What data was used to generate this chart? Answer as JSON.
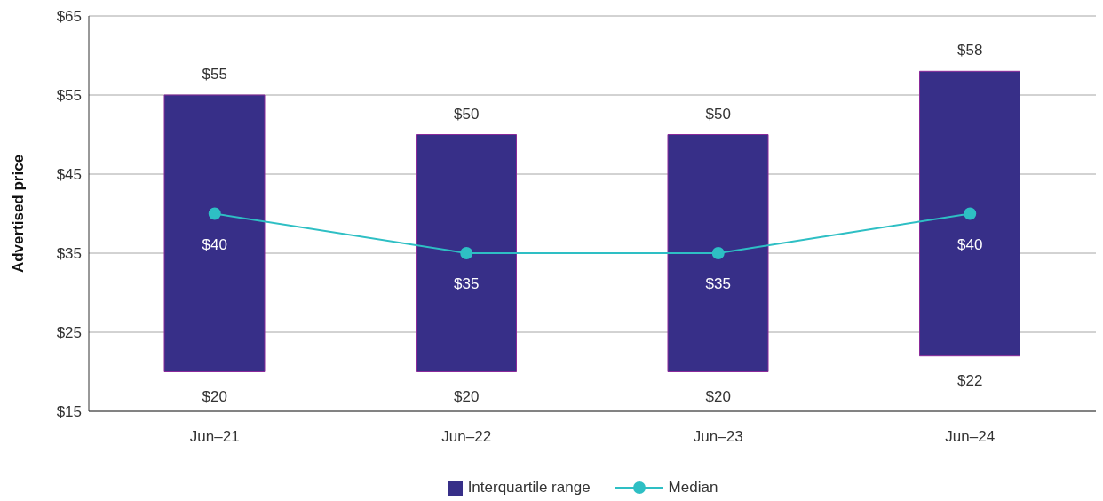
{
  "chart_data": {
    "type": "bar",
    "ylabel": "Advertised price",
    "categories": [
      "Jun–21",
      "Jun–22",
      "Jun–23",
      "Jun–24"
    ],
    "series": [
      {
        "name": "Interquartile range",
        "color": "#372f88",
        "base": [
          20,
          20,
          20,
          22
        ],
        "values": [
          35,
          30,
          30,
          36
        ]
      },
      {
        "name": "Median",
        "type": "line",
        "color": "#2ebfc4",
        "values": [
          40,
          35,
          35,
          40
        ],
        "value_labels": [
          "$40",
          "$35",
          "$35",
          "$40"
        ]
      }
    ],
    "annotations": [
      {
        "text": "$55",
        "x": "Jun–21",
        "y": 55
      },
      {
        "text": "$20",
        "x": "Jun–21",
        "y": 20
      },
      {
        "text": "$50",
        "x": "Jun–22",
        "y": 50
      },
      {
        "text": "$20",
        "x": "Jun–22",
        "y": 20
      },
      {
        "text": "$50",
        "x": "Jun–23",
        "y": 50
      },
      {
        "text": "$20",
        "x": "Jun–23",
        "y": 20
      },
      {
        "text": "$58",
        "x": "Jun–24",
        "y": 58
      },
      {
        "text": "$22",
        "x": "Jun–24",
        "y": 22
      }
    ],
    "ylim": [
      15,
      65
    ],
    "yticks": [
      {
        "value": 15,
        "label": "$15"
      },
      {
        "value": 25,
        "label": "$25"
      },
      {
        "value": 35,
        "label": "$35"
      },
      {
        "value": 45,
        "label": "$45"
      },
      {
        "value": 55,
        "label": "$55"
      },
      {
        "value": 65,
        "label": "$65"
      }
    ],
    "grid": "y",
    "legend": "bottom",
    "marker": "circle"
  }
}
